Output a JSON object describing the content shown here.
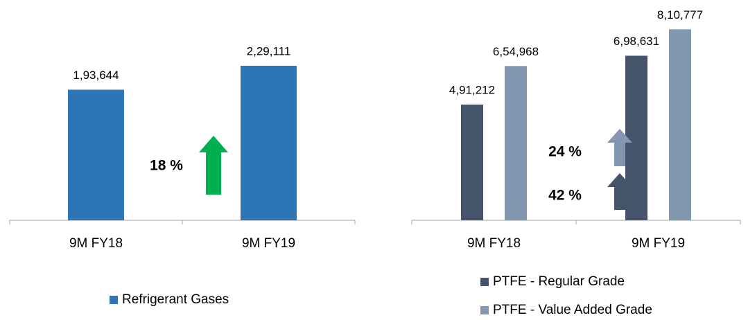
{
  "chart_data": [
    {
      "type": "bar",
      "categories": [
        "9M FY18",
        "9M FY19"
      ],
      "series": [
        {
          "name": "Refrigerant Gases",
          "color": "#2e75b6",
          "values": [
            193644,
            229111
          ],
          "value_labels": [
            "1,93,644",
            "2,29,111"
          ]
        }
      ],
      "ylim": [
        0,
        300000
      ],
      "annotations": [
        {
          "text": "18 %",
          "color": "#00b050"
        }
      ]
    },
    {
      "type": "bar",
      "categories": [
        "9M FY18",
        "9M FY19"
      ],
      "series": [
        {
          "name": "PTFE - Regular Grade",
          "color": "#44546a",
          "values": [
            491212,
            698631
          ],
          "value_labels": [
            "4,91,212",
            "6,98,631"
          ]
        },
        {
          "name": "PTFE - Value Added Grade",
          "color": "#8497b0",
          "values": [
            654968,
            810777
          ],
          "value_labels": [
            "6,54,968",
            "8,10,777"
          ]
        }
      ],
      "ylim": [
        0,
        900000
      ],
      "annotations": [
        {
          "text": "24 %",
          "color": "#8497b0"
        },
        {
          "text": "42 %",
          "color": "#44546a"
        }
      ]
    }
  ]
}
